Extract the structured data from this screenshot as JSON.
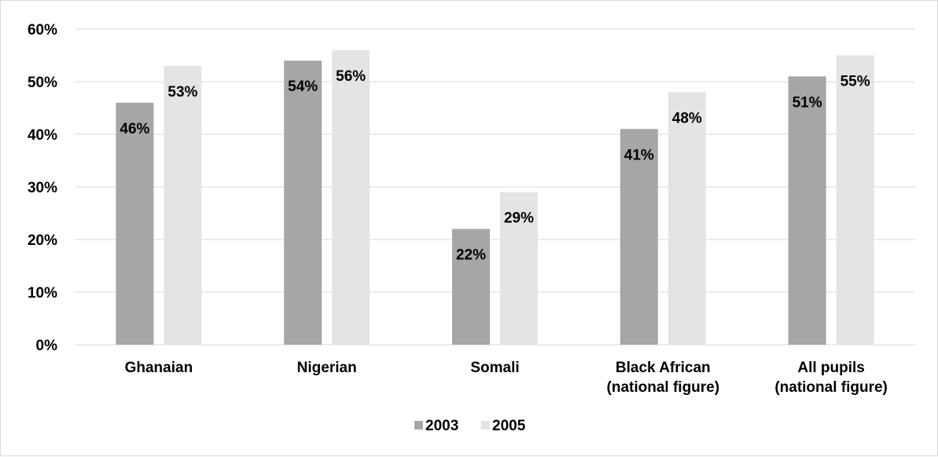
{
  "chart_data": {
    "type": "bar",
    "categories": [
      [
        "Ghanaian"
      ],
      [
        "Nigerian"
      ],
      [
        "Somali"
      ],
      [
        "Black African",
        "(national figure)"
      ],
      [
        "All pupils",
        "(national figure)"
      ]
    ],
    "series": [
      {
        "name": "2003",
        "values": [
          46,
          54,
          22,
          41,
          51
        ],
        "labels": [
          "46%",
          "54%",
          "22%",
          "41%",
          "51%"
        ],
        "color": "#a6a6a6"
      },
      {
        "name": "2005",
        "values": [
          53,
          56,
          29,
          48,
          55
        ],
        "labels": [
          "53%",
          "56%",
          "29%",
          "48%",
          "55%"
        ],
        "color": "#e4e4e4"
      }
    ],
    "ylim": [
      0,
      60
    ],
    "yticks": [
      "0%",
      "10%",
      "20%",
      "30%",
      "40%",
      "50%",
      "60%"
    ],
    "ytick_values": [
      0,
      10,
      20,
      30,
      40,
      50,
      60
    ],
    "gridlines": true,
    "gridline_color": "#d9d9d9",
    "legend_position": "bottom"
  }
}
